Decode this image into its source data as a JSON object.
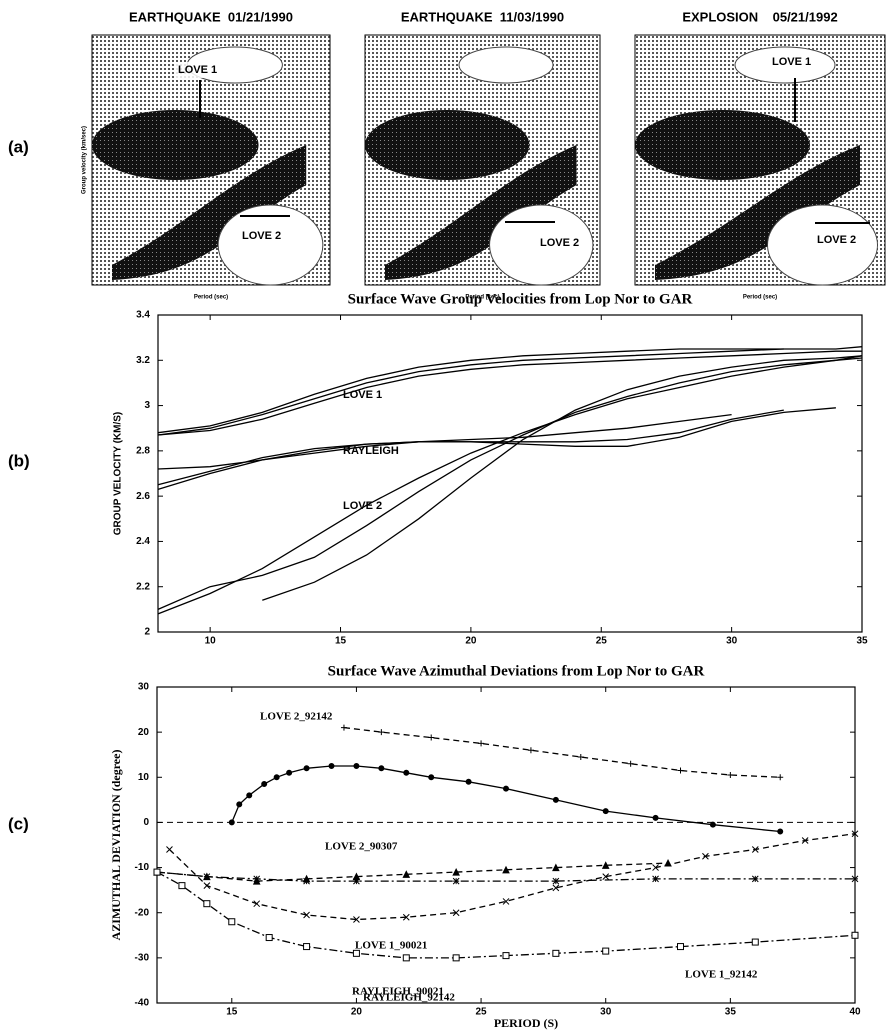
{
  "panel_a": {
    "panel_label": "(a)",
    "ylabel": "Group velocity (km/sec)",
    "plots": [
      {
        "title": "EARTHQUAKE  01/21/1990",
        "annotations": [
          "LOVE 1",
          "LOVE 2"
        ],
        "xlabel": "Period (sec)"
      },
      {
        "title": "EARTHQUAKE  11/03/1990",
        "annotations": [
          "LOVE 2"
        ],
        "xlabel": "Period (sec)"
      },
      {
        "title": "EXPLOSION    05/21/1992",
        "annotations": [
          "LOVE 1",
          "LOVE 2"
        ],
        "xlabel": "Period (sec)"
      }
    ]
  },
  "chart_data": [
    {
      "type": "line",
      "panel_label": "(b)",
      "title": "Surface Wave Group Velocities from Lop Nor to GAR",
      "ylabel": "GROUP VELOCITY (KM/S)",
      "annotations": [
        "LOVE 1",
        "RAYLEIGH",
        "LOVE 2"
      ],
      "x": [
        8,
        10,
        12,
        14,
        16,
        18,
        20,
        22,
        24,
        26,
        28,
        30,
        32,
        34,
        35
      ],
      "xlim": [
        8,
        35
      ],
      "xticks": [
        10,
        15,
        20,
        25,
        30,
        35
      ],
      "ylim": [
        2,
        3.4
      ],
      "yticks": [
        2,
        2.2,
        2.4,
        2.6,
        2.8,
        3,
        3.2,
        3.4
      ],
      "series": [
        {
          "color": "#000",
          "values": [
            2.87,
            2.9,
            2.96,
            3.03,
            3.1,
            3.15,
            3.18,
            3.2,
            3.21,
            3.22,
            3.23,
            3.24,
            3.25,
            3.25,
            3.26
          ]
        },
        {
          "color": "#000",
          "values": [
            2.87,
            2.89,
            2.94,
            3.01,
            3.08,
            3.13,
            3.16,
            3.18,
            3.19,
            3.2,
            3.21,
            3.22,
            3.23,
            3.24,
            3.24
          ]
        },
        {
          "color": "#000",
          "values": [
            2.88,
            2.91,
            2.97,
            3.05,
            3.12,
            3.17,
            3.2,
            3.22,
            3.23,
            3.24,
            3.25,
            3.25,
            3.25,
            null,
            null
          ]
        },
        {
          "color": "#000",
          "values": [
            2.72,
            2.73,
            2.76,
            2.79,
            2.82,
            2.84,
            2.85,
            2.86,
            2.88,
            2.9,
            2.93,
            2.96,
            null,
            null,
            null
          ]
        },
        {
          "color": "#000",
          "values": [
            2.63,
            2.7,
            2.76,
            2.8,
            2.83,
            2.84,
            2.84,
            2.83,
            2.82,
            2.82,
            2.86,
            2.93,
            2.97,
            2.99,
            null
          ]
        },
        {
          "color": "#000",
          "values": [
            2.65,
            2.71,
            2.77,
            2.81,
            2.83,
            2.84,
            2.84,
            2.84,
            2.84,
            2.85,
            2.88,
            2.94,
            2.98,
            null,
            null
          ]
        },
        {
          "color": "#000",
          "values": [
            2.08,
            2.17,
            2.28,
            2.42,
            2.56,
            2.68,
            2.79,
            2.88,
            2.96,
            3.03,
            3.08,
            3.13,
            3.17,
            3.2,
            3.22
          ]
        },
        {
          "color": "#000",
          "values": [
            2.1,
            2.2,
            2.25,
            2.33,
            2.47,
            2.62,
            2.76,
            2.87,
            2.97,
            3.04,
            3.1,
            3.15,
            3.18,
            3.2,
            3.21
          ]
        },
        {
          "color": "#000",
          "values": [
            null,
            null,
            2.14,
            2.22,
            2.34,
            2.5,
            2.68,
            2.85,
            2.98,
            3.07,
            3.13,
            3.17,
            3.2,
            3.21,
            3.22
          ]
        }
      ]
    },
    {
      "type": "line",
      "panel_label": "(c)",
      "title": "Surface Wave Azimuthal Deviations from Lop Nor to GAR",
      "xlabel": "PERIOD (S)",
      "ylabel": "AZIMUTHAL DEVIATION  (degree)",
      "xlim": [
        12,
        40
      ],
      "xticks": [
        15,
        20,
        25,
        30,
        35,
        40
      ],
      "ylim": [
        -40,
        30
      ],
      "yticks": [
        -40,
        -30,
        -20,
        -10,
        0,
        10,
        20,
        30
      ],
      "hline": 0,
      "series": [
        {
          "name": "LOVE 2_92142",
          "color": "#000",
          "style": "dashed",
          "marker": "plus",
          "x": [
            19.5,
            21,
            23,
            25,
            27,
            29,
            31,
            33,
            35,
            37
          ],
          "values": [
            21,
            20,
            18.8,
            17.5,
            16,
            14.5,
            13,
            11.5,
            10.5,
            10
          ]
        },
        {
          "name": "LOVE 2_90307",
          "color": "#000",
          "style": "solid",
          "marker": "circle",
          "x": [
            15,
            15.3,
            15.7,
            16.3,
            16.8,
            17.3,
            18,
            19,
            20,
            21,
            22,
            23,
            24.5,
            26,
            28,
            30,
            32,
            34.3,
            37
          ],
          "values": [
            0,
            4,
            6,
            8.5,
            10,
            11,
            12,
            12.5,
            12.5,
            12,
            11,
            10,
            9,
            7.5,
            5,
            2.5,
            1,
            -0.5,
            -2
          ]
        },
        {
          "name": "LOVE 1_90021",
          "color": "#000",
          "style": "dashed",
          "marker": "triangle",
          "x": [
            12,
            14,
            16,
            18,
            20,
            22,
            24,
            26,
            28,
            30,
            32.5
          ],
          "values": [
            -11,
            -12,
            -13,
            -12.5,
            -12,
            -11.5,
            -11,
            -10.5,
            -10,
            -9.5,
            -9
          ]
        },
        {
          "name": "LOVE 1_92142",
          "color": "#000",
          "style": "dashdot",
          "marker": "star",
          "x": [
            12,
            14,
            16,
            18,
            20,
            24,
            28,
            32,
            36,
            40
          ],
          "values": [
            -11,
            -12,
            -12.5,
            -13,
            -13,
            -13,
            -13,
            -12.5,
            -12.5,
            -12.5
          ]
        },
        {
          "name": "RAYLEIGH_90021",
          "color": "#000",
          "style": "dashed",
          "marker": "x",
          "x": [
            12.5,
            14,
            16,
            18,
            20,
            22,
            24,
            26,
            28,
            30,
            32,
            34,
            36,
            38,
            40
          ],
          "values": [
            -6,
            -14,
            -18,
            -20.5,
            -21.5,
            -21,
            -20,
            -17.5,
            -14.5,
            -12,
            -10,
            -7.5,
            -6,
            -4,
            -2.5
          ]
        },
        {
          "name": "RAYLEIGH_92142",
          "color": "#000",
          "style": "dashdot",
          "marker": "square",
          "x": [
            12,
            13,
            14,
            15,
            16.5,
            18,
            20,
            22,
            24,
            26,
            28,
            30,
            33,
            36,
            40
          ],
          "values": [
            -11,
            -14,
            -18,
            -22,
            -25.5,
            -27.5,
            -29,
            -30,
            -30,
            -29.5,
            -29,
            -28.5,
            -27.5,
            -26.5,
            -25
          ]
        }
      ]
    }
  ]
}
